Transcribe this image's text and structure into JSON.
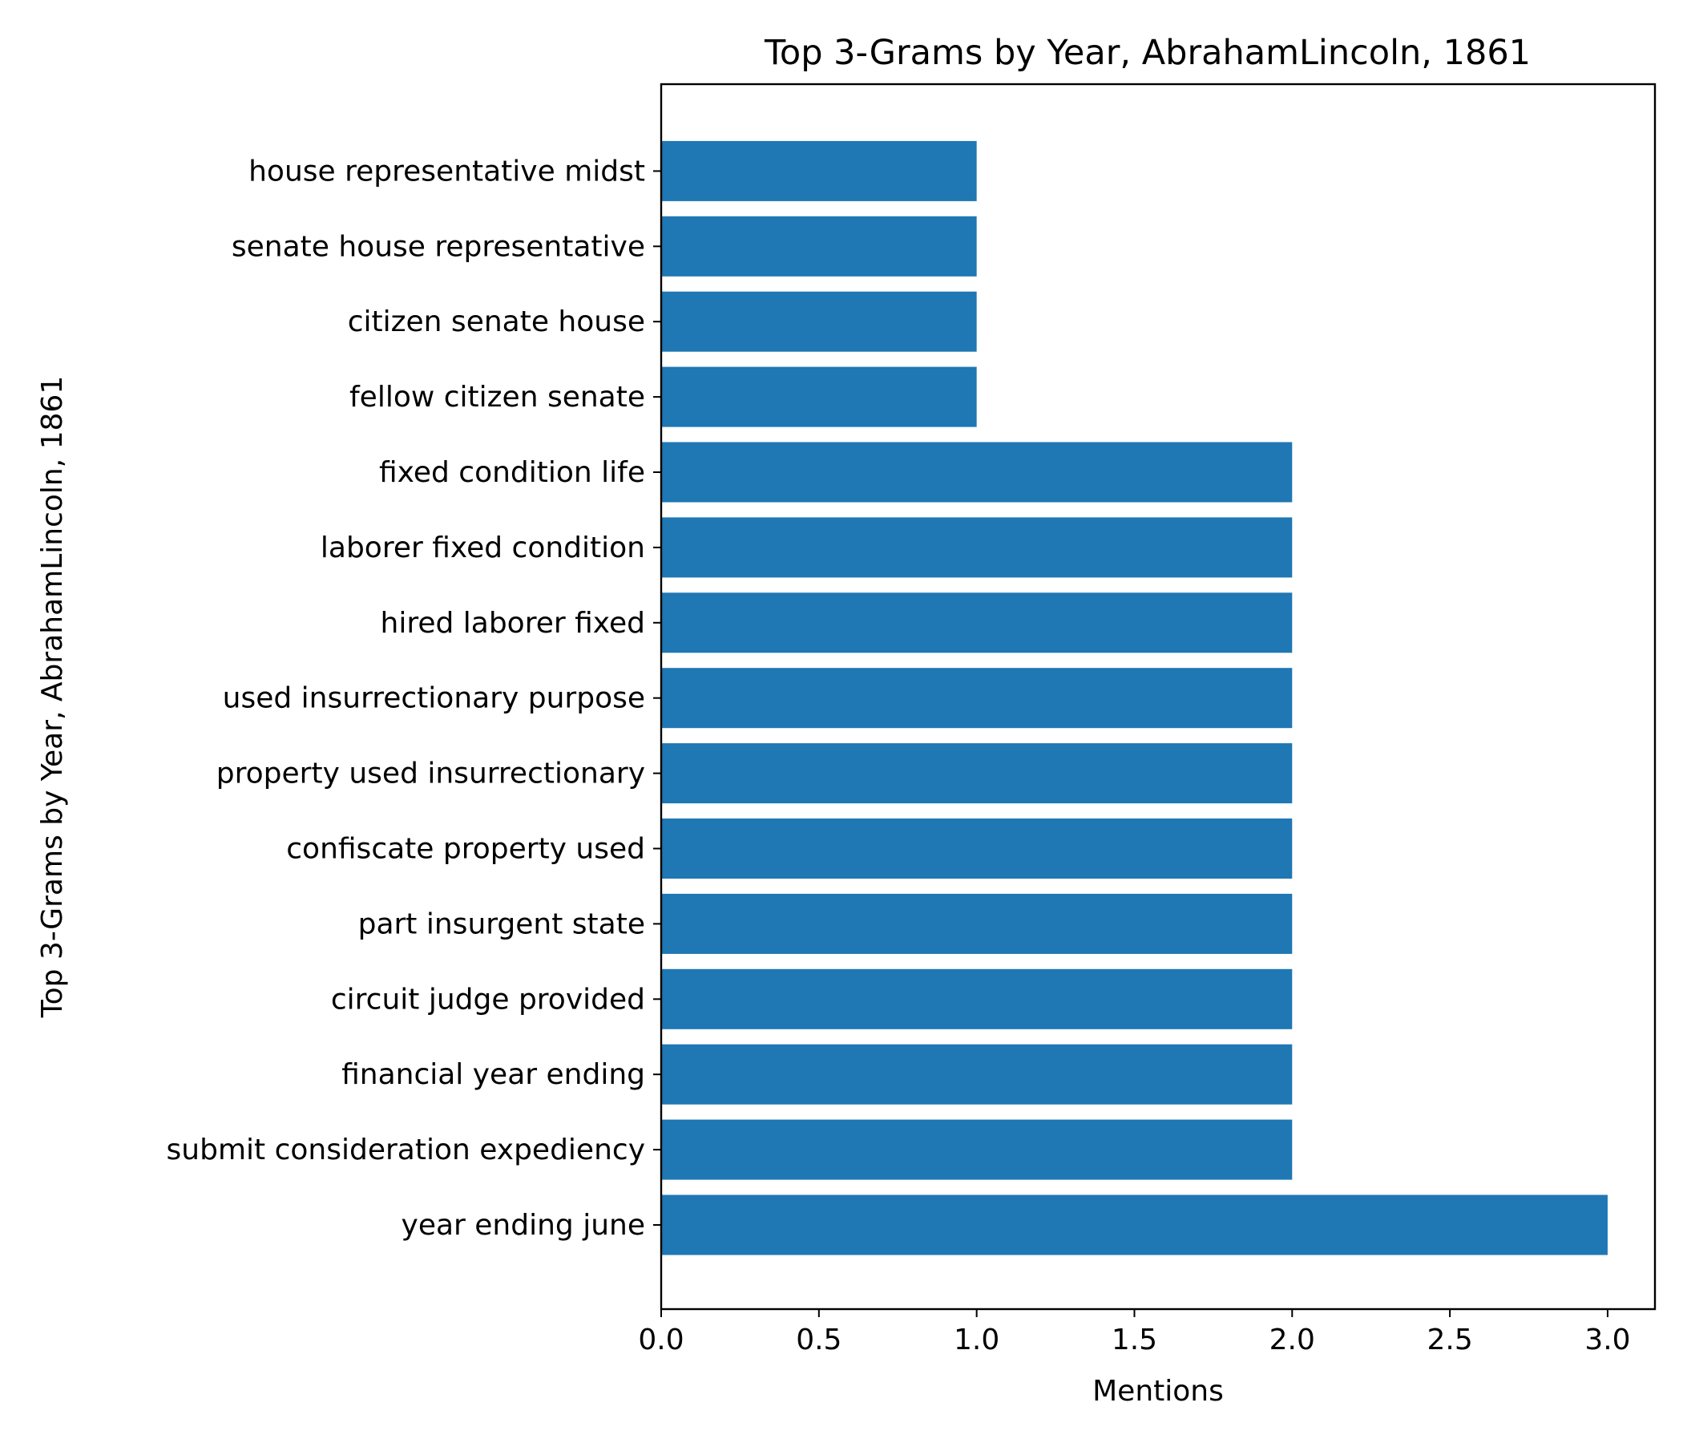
{
  "chart_data": {
    "type": "bar",
    "orientation": "horizontal",
    "title": "Top 3-Grams by Year, AbrahamLincoln, 1861",
    "xlabel": "Mentions",
    "ylabel": "Top 3-Grams by Year, AbrahamLincoln, 1861",
    "categories": [
      "year ending june",
      "submit consideration expediency",
      "financial year ending",
      "circuit judge provided",
      "part insurgent state",
      "confiscate property used",
      "property used insurrectionary",
      "used insurrectionary purpose",
      "hired laborer fixed",
      "laborer fixed condition",
      "fixed condition life",
      "fellow citizen senate",
      "citizen senate house",
      "senate house representative",
      "house representative midst"
    ],
    "values": [
      3,
      2,
      2,
      2,
      2,
      2,
      2,
      2,
      2,
      2,
      2,
      1,
      1,
      1,
      1
    ],
    "xlim": [
      0,
      3.15
    ],
    "xticks": [
      "0.0",
      "0.5",
      "1.0",
      "1.5",
      "2.0",
      "2.5",
      "3.0"
    ],
    "grid": false,
    "bar_color": "#1f77b4"
  }
}
